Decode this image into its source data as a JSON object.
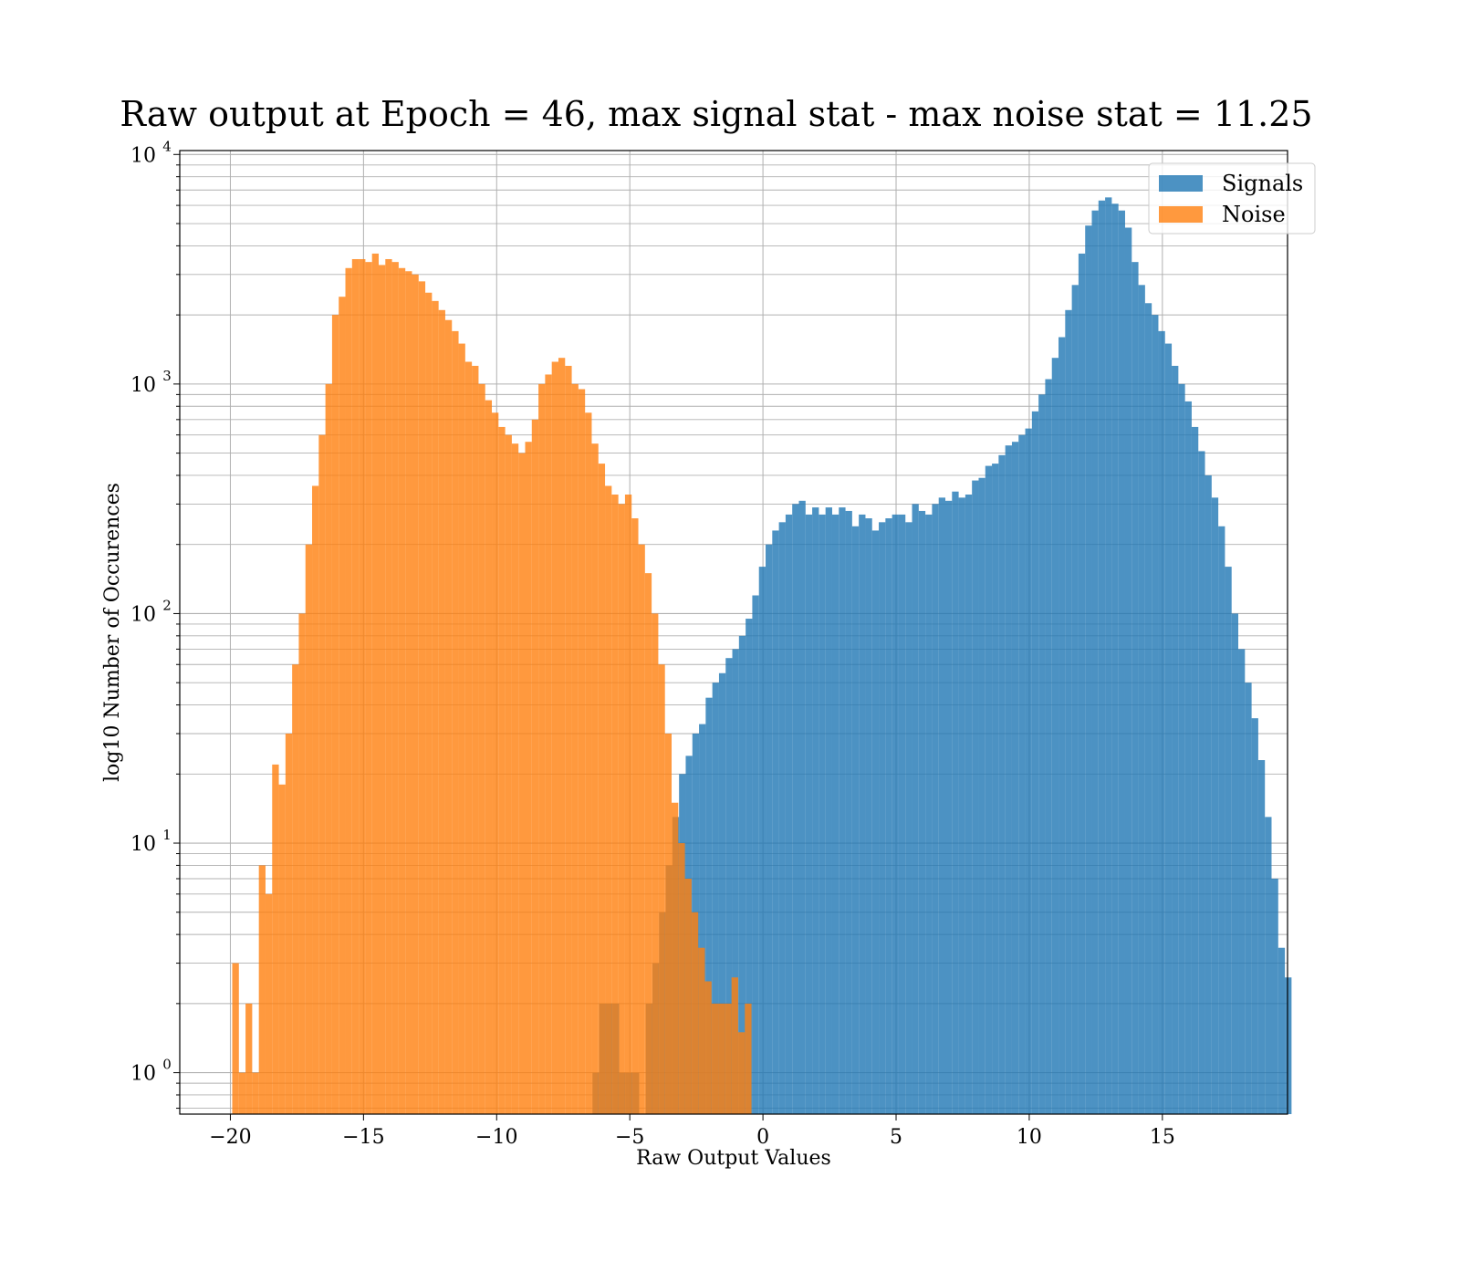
{
  "chart_data": {
    "type": "bar",
    "title": "Raw output at Epoch = 46, max signal stat - max noise stat = 11.25",
    "xlabel": "Raw Output Values",
    "ylabel": "log10 Number of Occurences",
    "xlim": [
      -21.9,
      19.7
    ],
    "ylim": [
      0.66,
      10400
    ],
    "y_scale": "log",
    "grid": "major and minor",
    "legend_position": "top-right",
    "x_ticks": [
      {
        "value": -20,
        "label": "−20"
      },
      {
        "value": -15,
        "label": "−15"
      },
      {
        "value": -10,
        "label": "−10"
      },
      {
        "value": -5,
        "label": "−5"
      },
      {
        "value": 0,
        "label": "0"
      },
      {
        "value": 5,
        "label": "5"
      },
      {
        "value": 10,
        "label": "10"
      },
      {
        "value": 15,
        "label": "15"
      }
    ],
    "y_ticks": [
      {
        "value": 1,
        "base": "10",
        "exp": "0"
      },
      {
        "value": 10,
        "base": "10",
        "exp": "1"
      },
      {
        "value": 100,
        "base": "10",
        "exp": "2"
      },
      {
        "value": 1000,
        "base": "10",
        "exp": "3"
      },
      {
        "value": 10000,
        "base": "10",
        "exp": "4"
      }
    ],
    "series": [
      {
        "name": "Signals",
        "color": "#1f77b4",
        "opacity": 0.8,
        "bin_start": -6.4,
        "bin_width": 0.25,
        "counts": [
          1,
          2,
          2,
          2,
          1,
          1,
          1,
          0,
          2,
          3,
          5,
          8,
          13,
          20,
          24,
          30,
          33,
          43,
          50,
          55,
          64,
          70,
          80,
          95,
          120,
          160,
          200,
          230,
          250,
          270,
          300,
          310,
          270,
          290,
          270,
          290,
          270,
          290,
          280,
          240,
          270,
          260,
          230,
          250,
          260,
          270,
          270,
          250,
          300,
          280,
          270,
          300,
          320,
          310,
          340,
          320,
          330,
          380,
          390,
          440,
          450,
          490,
          540,
          560,
          600,
          640,
          760,
          900,
          1050,
          1300,
          1600,
          2100,
          2700,
          3700,
          4900,
          5700,
          6300,
          6500,
          6100,
          5700,
          4800,
          3400,
          2700,
          2250,
          2000,
          1700,
          1500,
          1200,
          1000,
          840,
          650,
          510,
          400,
          320,
          240,
          160,
          100,
          70,
          50,
          35,
          23,
          13,
          7,
          3.5,
          2.6
        ]
      },
      {
        "name": "Noise",
        "color": "#ff7f0e",
        "opacity": 0.8,
        "bin_start": -19.93,
        "bin_width": 0.25,
        "counts": [
          3,
          1,
          2,
          1,
          8,
          6,
          22,
          18,
          30,
          60,
          100,
          200,
          360,
          600,
          1000,
          2000,
          2400,
          3200,
          3500,
          3500,
          3400,
          3700,
          3300,
          3500,
          3400,
          3200,
          3100,
          3000,
          2800,
          2500,
          2300,
          2100,
          1900,
          1700,
          1500,
          1250,
          1200,
          1000,
          850,
          750,
          650,
          600,
          550,
          500,
          560,
          700,
          1000,
          1100,
          1250,
          1300,
          1200,
          1000,
          950,
          750,
          550,
          450,
          360,
          330,
          300,
          330,
          260,
          200,
          150,
          100,
          60,
          30,
          15,
          10,
          7,
          5,
          3.5,
          2.5,
          2,
          2,
          2,
          2.6,
          1.5,
          2
        ]
      }
    ]
  }
}
